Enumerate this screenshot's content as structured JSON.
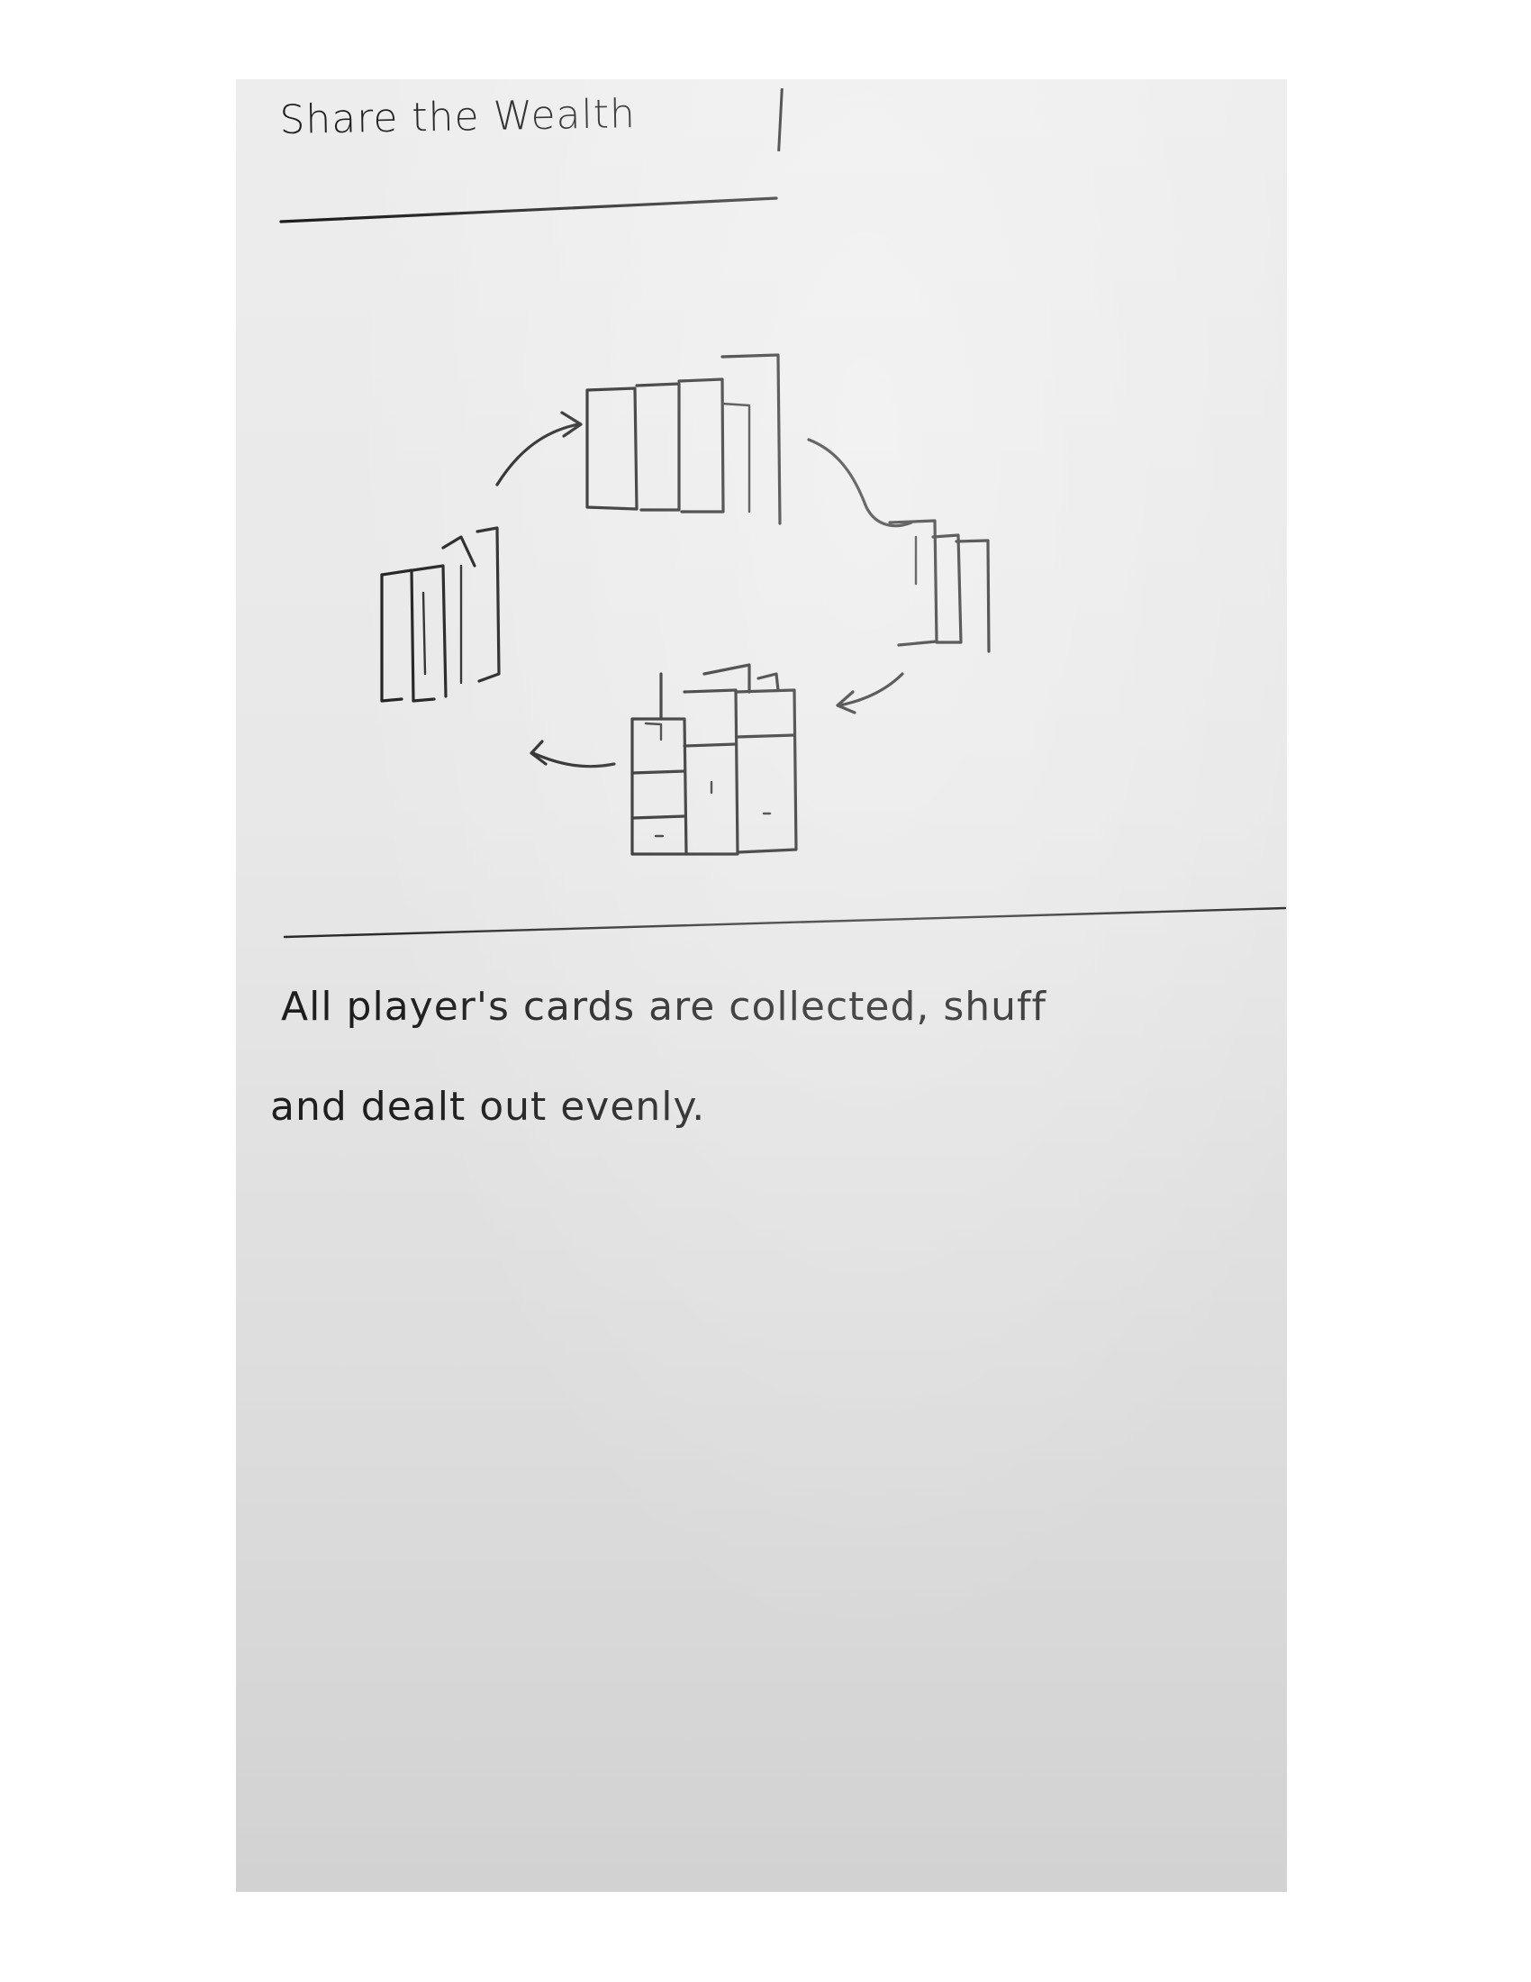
{
  "sketch": {
    "title": "Share the Wealth",
    "description_line1": "All player's cards are collected, shuff",
    "description_line2": "and dealt out evenly."
  },
  "colors": {
    "paper": "#e8e8e8",
    "ink": "#1f1f1f",
    "background": "#ffffff"
  }
}
